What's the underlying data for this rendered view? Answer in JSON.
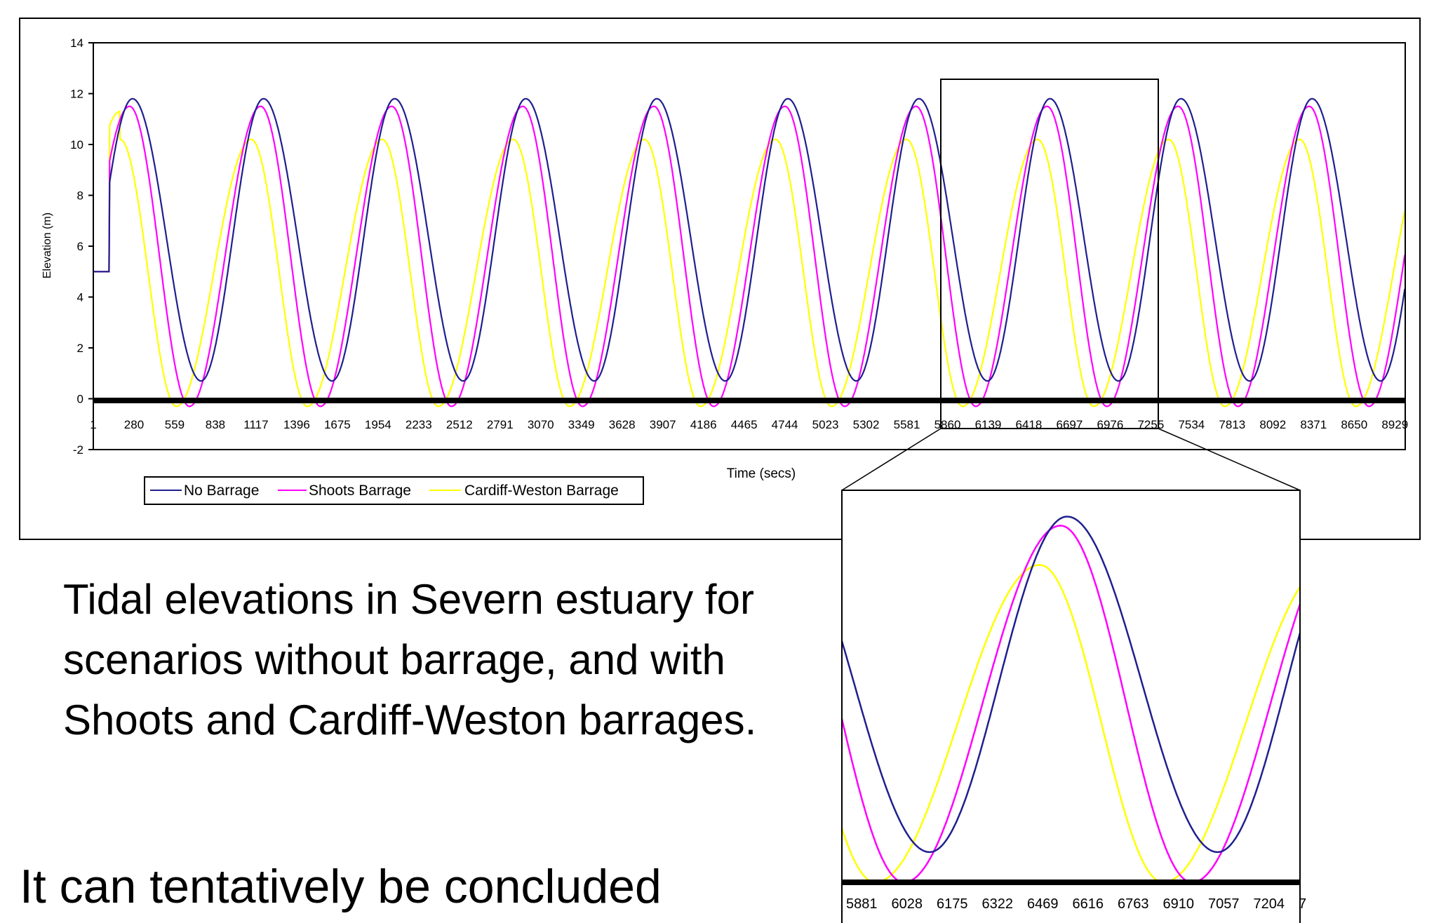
{
  "main_chart": {
    "ylabel": "Elevation (m)",
    "xlabel": "Time (secs)",
    "yticks": [
      14,
      12,
      10,
      8,
      6,
      4,
      2,
      0,
      -2
    ],
    "xticks": [
      "1",
      "280",
      "559",
      "838",
      "1117",
      "1396",
      "1675",
      "1954",
      "2233",
      "2512",
      "2791",
      "3070",
      "3349",
      "3628",
      "3907",
      "4186",
      "4465",
      "4744",
      "5023",
      "5302",
      "5581",
      "5860",
      "6139",
      "6418",
      "6697",
      "6976",
      "7255",
      "7534",
      "7813",
      "8092",
      "8371",
      "8650",
      "8929"
    ]
  },
  "legend": {
    "items": [
      {
        "label": "No Barrage",
        "color": "#1f1f8f"
      },
      {
        "label": "Shoots Barrage",
        "color": "#ff00ff"
      },
      {
        "label": "Cardiff-Weston Barrage",
        "color": "#ffff00"
      }
    ]
  },
  "zoom": {
    "xticks": [
      "5881",
      "6028",
      "6175",
      "6322",
      "6469",
      "6616",
      "6763",
      "6910",
      "7057",
      "7204",
      "7"
    ]
  },
  "caption": {
    "line1": "Tidal elevations in Severn estuary for",
    "line2": "scenarios without barrage, and with",
    "line3": "Shoots and Cardiff-Weston barrages."
  },
  "conclusion": "It can tentatively be concluded",
  "chart_data": [
    {
      "type": "line",
      "xlabel": "Time (secs)",
      "ylabel": "Elevation (m)",
      "ylim": [
        -2,
        14
      ],
      "xlim": [
        1,
        9000
      ],
      "grid": false,
      "legend": "bottom-left",
      "series": [
        {
          "name": "No Barrage",
          "color": "#1f1f8f",
          "period": 899,
          "peak_time": 270,
          "min_time": 740,
          "high": 11.8,
          "low": 0.7,
          "initial": 5.0
        },
        {
          "name": "Shoots Barrage",
          "color": "#ff00ff",
          "period": 899,
          "peak_time": 250,
          "min_time": 660,
          "high": 11.5,
          "low": -0.3,
          "initial": 5.0
        },
        {
          "name": "Cardiff-Weston Barrage",
          "color": "#ffff00",
          "period": 899,
          "peak_time": 185,
          "min_time": 570,
          "high": 10.2,
          "low": -0.3,
          "initial": 5.0,
          "first_peak": 11.3
        }
      ]
    },
    {
      "type": "line",
      "xlabel": "",
      "ylabel": "",
      "xlim": [
        5860,
        7290
      ],
      "ylim": [
        -1,
        12.3
      ],
      "series_ref": "same three series as main chart (zoomed)"
    }
  ]
}
